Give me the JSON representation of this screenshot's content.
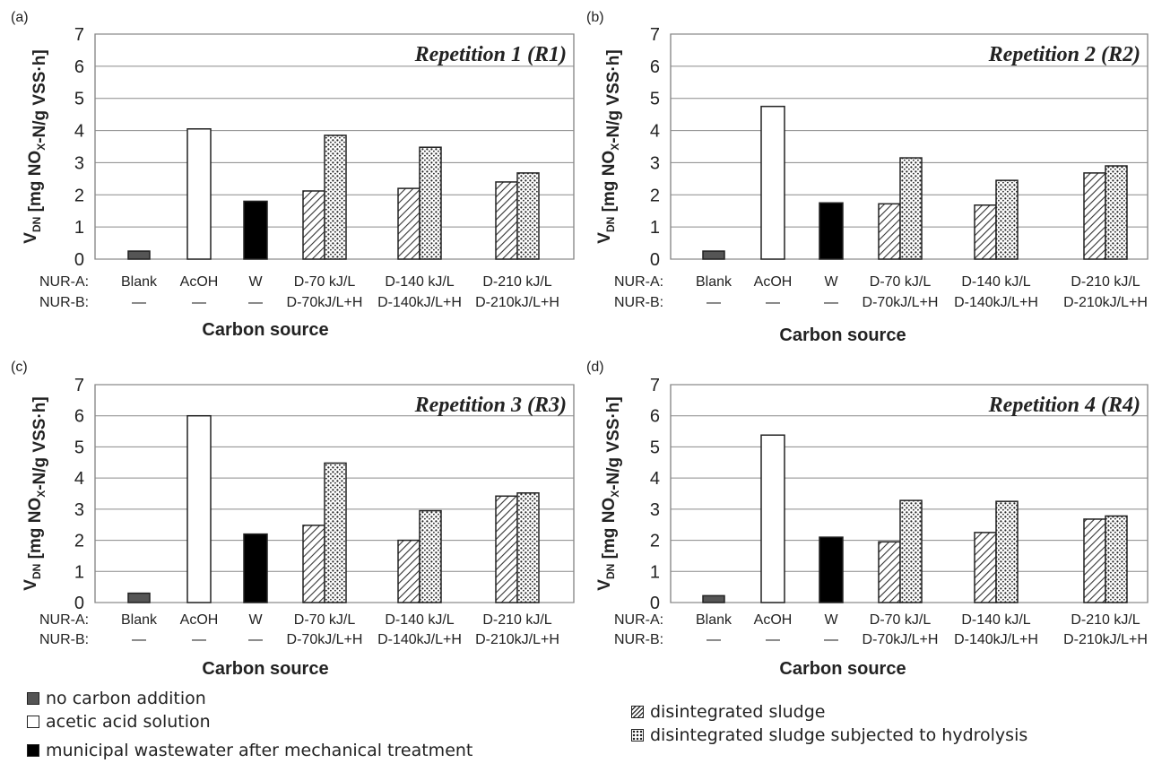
{
  "chart_data": [
    {
      "type": "bar",
      "panel_label": "(a)",
      "title": "Repetition 1  (R1)",
      "ylabel": "V",
      "ylabel_sub": "DN",
      "ylabel_unit_a": " [mg NO",
      "ylabel_unit_sub": "X",
      "ylabel_unit_b": "-N/g VSS·h]",
      "xlabel": "Carbon source",
      "ylim": [
        0,
        7
      ],
      "yticks": [
        "0",
        "1",
        "2",
        "3",
        "4",
        "5",
        "6",
        "7"
      ],
      "row_labels": [
        "NUR-A:",
        "NUR-B:"
      ],
      "categories_a": [
        "Blank",
        "AcOH",
        "W",
        "D-70 kJ/L",
        "D-140 kJ/L",
        "D-210 kJ/L"
      ],
      "categories_b": [
        "—",
        "—",
        "—",
        "D-70kJ/L+H",
        "D-140kJ/L+H",
        "D-210kJ/L+H"
      ],
      "series": [
        {
          "values": [
            0.25,
            4.05,
            1.8,
            2.12,
            2.2,
            2.4
          ]
        },
        {
          "values": [
            null,
            null,
            null,
            3.85,
            3.48,
            2.68
          ]
        }
      ]
    },
    {
      "type": "bar",
      "panel_label": "(b)",
      "title": "Repetition 2  (R2)",
      "ylabel": "V",
      "ylabel_sub": "DN",
      "ylabel_unit_a": " [mg NO",
      "ylabel_unit_sub": "X",
      "ylabel_unit_b": "-N/g VSS·h]",
      "xlabel": "Carbon source",
      "ylim": [
        0,
        7
      ],
      "yticks": [
        "0",
        "1",
        "2",
        "3",
        "4",
        "5",
        "6",
        "7"
      ],
      "row_labels": [
        "NUR-A:",
        "NUR-B:"
      ],
      "categories_a": [
        "Blank",
        "AcOH",
        "W",
        "D-70 kJ/L",
        "D-140 kJ/L",
        "D-210 kJ/L"
      ],
      "categories_b": [
        "—",
        "—",
        "—",
        "D-70kJ/L+H",
        "D-140kJ/L+H",
        "D-210kJ/L+H"
      ],
      "series": [
        {
          "values": [
            0.25,
            4.75,
            1.75,
            1.72,
            1.68,
            2.68
          ]
        },
        {
          "values": [
            null,
            null,
            null,
            3.15,
            2.45,
            2.9
          ]
        }
      ]
    },
    {
      "type": "bar",
      "panel_label": "(c)",
      "title": "Repetition 3  (R3)",
      "ylabel": "V",
      "ylabel_sub": "DN",
      "ylabel_unit_a": " [mg NO",
      "ylabel_unit_sub": "X",
      "ylabel_unit_b": "-N/g VSS·h]",
      "xlabel": "Carbon source",
      "ylim": [
        0,
        7
      ],
      "yticks": [
        "0",
        "1",
        "2",
        "3",
        "4",
        "5",
        "6",
        "7"
      ],
      "row_labels": [
        "NUR-A:",
        "NUR-B:"
      ],
      "categories_a": [
        "Blank",
        "AcOH",
        "W",
        "D-70 kJ/L",
        "D-140 kJ/L",
        "D-210 kJ/L"
      ],
      "categories_b": [
        "—",
        "—",
        "—",
        "D-70kJ/L+H",
        "D-140kJ/L+H",
        "D-210kJ/L+H"
      ],
      "series": [
        {
          "values": [
            0.3,
            6.0,
            2.2,
            2.48,
            2.0,
            3.42
          ]
        },
        {
          "values": [
            null,
            null,
            null,
            4.48,
            2.95,
            3.52
          ]
        }
      ]
    },
    {
      "type": "bar",
      "panel_label": "(d)",
      "title": "Repetition 4  (R4)",
      "ylabel": "V",
      "ylabel_sub": "DN",
      "ylabel_unit_a": " [mg NO",
      "ylabel_unit_sub": "X",
      "ylabel_unit_b": "-N/g VSS·h]",
      "xlabel": "Carbon source",
      "ylim": [
        0,
        7
      ],
      "yticks": [
        "0",
        "1",
        "2",
        "3",
        "4",
        "5",
        "6",
        "7"
      ],
      "row_labels": [
        "NUR-A:",
        "NUR-B:"
      ],
      "categories_a": [
        "Blank",
        "AcOH",
        "W",
        "D-70 kJ/L",
        "D-140 kJ/L",
        "D-210 kJ/L"
      ],
      "categories_b": [
        "—",
        "—",
        "—",
        "D-70kJ/L+H",
        "D-140kJ/L+H",
        "D-210kJ/L+H"
      ],
      "series": [
        {
          "values": [
            0.22,
            5.38,
            2.1,
            1.95,
            2.25,
            2.68
          ]
        },
        {
          "values": [
            null,
            null,
            null,
            3.28,
            3.25,
            2.78
          ]
        }
      ]
    }
  ],
  "legend": {
    "left": [
      {
        "label": "no carbon addition",
        "swatch": "gray"
      },
      {
        "label": "acetic acid solution",
        "swatch": "white"
      },
      {
        "label": "municipal wastewater after mechanical treatment",
        "swatch": "black"
      }
    ],
    "right": [
      {
        "label": "disintegrated sludge",
        "swatch": "hatch"
      },
      {
        "label": "disintegrated sludge subjected to hydrolysis",
        "swatch": "dots"
      }
    ]
  },
  "colors": {
    "blank": "#555555",
    "acoh": "#ffffff",
    "wastewater": "#000000",
    "outline": "#222222",
    "grid": "#8a8a8a"
  }
}
